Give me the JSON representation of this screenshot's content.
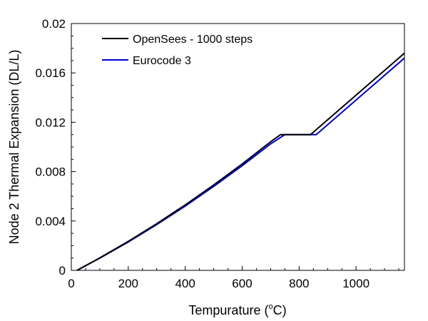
{
  "chart_data": {
    "type": "line",
    "title": "",
    "xlabel": "Tempurature (",
    "xlabel_sup": "o",
    "xlabel_unit": "C)",
    "ylabel": "Node 2 Thermal Expansion (DL/L)",
    "xlim": [
      0,
      1170
    ],
    "ylim": [
      0,
      0.02
    ],
    "x_ticks": [
      0,
      200,
      400,
      600,
      800,
      1000
    ],
    "x_tick_labels": [
      "0",
      "200",
      "400",
      "600",
      "800",
      "1000"
    ],
    "y_ticks": [
      0,
      0.004,
      0.008,
      0.012,
      0.016,
      0.02
    ],
    "y_tick_labels": [
      "0",
      "0.004",
      "0.008",
      "0.012",
      "0.016",
      "0.02"
    ],
    "grid": false,
    "legend_position": "top-left",
    "series": [
      {
        "name": "OpenSees - 1000 steps",
        "color": "#000000",
        "x": [
          20,
          100,
          200,
          300,
          400,
          500,
          600,
          700,
          735,
          840,
          1000,
          1170
        ],
        "y": [
          0.0,
          0.00101,
          0.00235,
          0.00378,
          0.0053,
          0.00692,
          0.00862,
          0.01042,
          0.011,
          0.011,
          0.0142,
          0.0176
        ]
      },
      {
        "name": "Eurocode 3",
        "color": "#0000cc",
        "x": [
          20,
          100,
          200,
          300,
          400,
          500,
          600,
          700,
          750,
          860,
          1000,
          1170
        ],
        "y": [
          0.0,
          0.00099,
          0.0023,
          0.00371,
          0.00521,
          0.0068,
          0.00848,
          0.01025,
          0.011,
          0.011,
          0.0138,
          0.0172
        ]
      }
    ]
  }
}
